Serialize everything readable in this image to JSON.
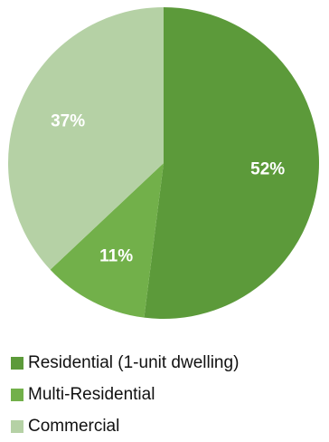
{
  "chart_data": {
    "type": "pie",
    "title": "",
    "categories": [
      "Residential (1-unit dwelling)",
      "Multi-Residential",
      "Commercial"
    ],
    "values": [
      52,
      11,
      37
    ],
    "data_labels": [
      "52%",
      "11%",
      "37%"
    ],
    "colors": [
      "#5c9a3a",
      "#72b04a",
      "#b5d1a5"
    ],
    "start": "top",
    "direction": "clockwise",
    "legend_position": "bottom"
  },
  "legend": {
    "items": [
      {
        "label": "Residential (1-unit dwelling)",
        "color": "#5c9a3a"
      },
      {
        "label": "Multi-Residential",
        "color": "#72b04a"
      },
      {
        "label": "Commercial",
        "color": "#b5d1a5"
      }
    ]
  }
}
